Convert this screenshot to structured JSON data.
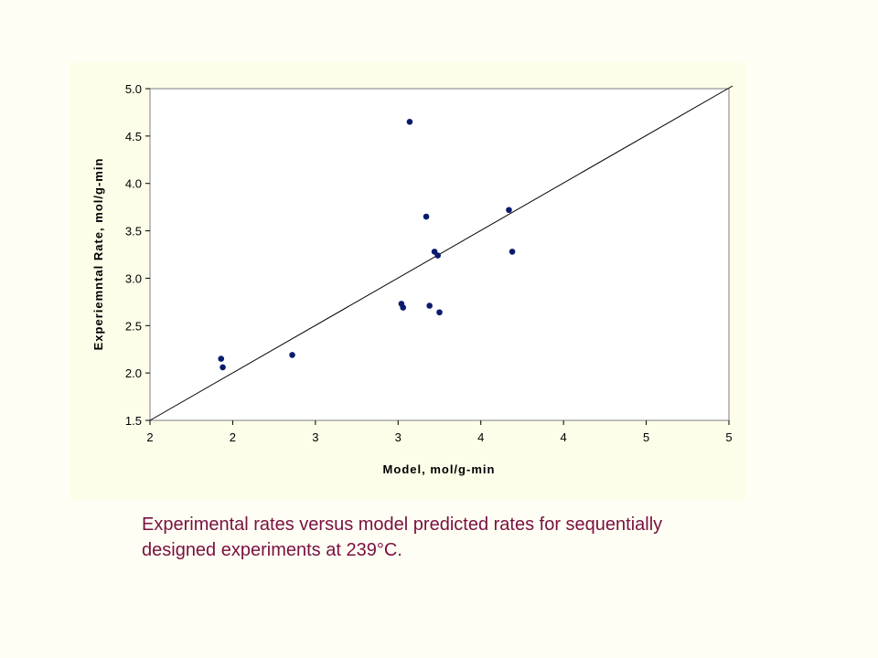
{
  "chart_data": {
    "type": "scatter",
    "xlabel": "Model, mol/g-min",
    "ylabel": "Experiemntal Rate, mol/g-min",
    "xlim": [
      1.5,
      5.0
    ],
    "ylim": [
      1.5,
      5.0
    ],
    "x_ticks": [
      1.5,
      2.0,
      2.5,
      3.0,
      3.5,
      4.0,
      4.5,
      5.0
    ],
    "x_tick_labels": [
      "2",
      "2",
      "3",
      "3",
      "4",
      "4",
      "5",
      "5"
    ],
    "y_ticks": [
      1.5,
      2.0,
      2.5,
      3.0,
      3.5,
      4.0,
      4.5,
      5.0
    ],
    "y_tick_labels": [
      "1.5",
      "2.0",
      "2.5",
      "3.0",
      "3.5",
      "4.0",
      "4.5",
      "5.0"
    ],
    "grid": false,
    "legend": "none",
    "reference_line": {
      "x": [
        1.5,
        5.0
      ],
      "y": [
        1.5,
        5.0
      ]
    },
    "points": [
      {
        "x": 1.93,
        "y": 2.15
      },
      {
        "x": 1.94,
        "y": 2.06
      },
      {
        "x": 2.36,
        "y": 2.19
      },
      {
        "x": 3.02,
        "y": 2.73
      },
      {
        "x": 3.03,
        "y": 2.69
      },
      {
        "x": 3.07,
        "y": 4.65
      },
      {
        "x": 3.17,
        "y": 3.65
      },
      {
        "x": 3.19,
        "y": 2.71
      },
      {
        "x": 3.22,
        "y": 3.28
      },
      {
        "x": 3.24,
        "y": 3.24
      },
      {
        "x": 3.25,
        "y": 2.64
      },
      {
        "x": 3.67,
        "y": 3.72
      },
      {
        "x": 3.69,
        "y": 3.28
      }
    ],
    "colors": {
      "points": "#0a1a6e",
      "line": "#000000"
    }
  },
  "caption": "Experimental rates versus model predicted rates for sequentially designed experiments at 239°C."
}
